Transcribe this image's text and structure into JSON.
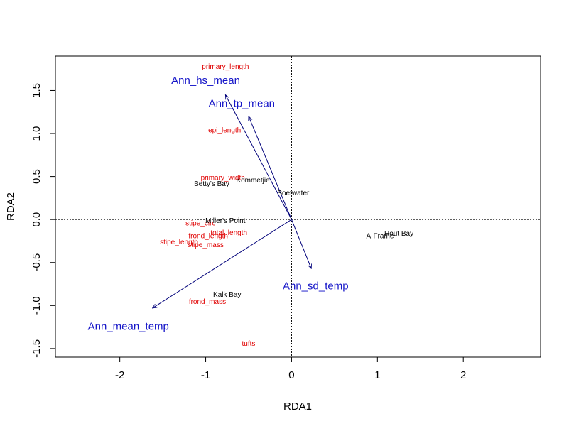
{
  "chart_data": {
    "type": "scatter",
    "title": "",
    "xlabel": "RDA1",
    "ylabel": "RDA2",
    "xlim": [
      -2.75,
      2.9
    ],
    "ylim": [
      -1.6,
      1.9
    ],
    "xticks": [
      -2,
      -1,
      0,
      1,
      2
    ],
    "yticks": [
      -1.5,
      -1.0,
      -0.5,
      0.0,
      0.5,
      1.0,
      1.5
    ],
    "ytick_labels": [
      "-1.5",
      "-1.0",
      "-0.5",
      "0.0",
      "0.5",
      "1.0",
      "1.5"
    ],
    "grid": false,
    "reference_lines": {
      "x0": true,
      "y0": true,
      "style": "dotted"
    },
    "colors": {
      "sites": "#000000",
      "species": "#e00000",
      "env_text": "#1515c8",
      "env_arrows": "#00007a"
    },
    "sites": [
      {
        "label": "Betty's Bay",
        "x": -0.93,
        "y": 0.42
      },
      {
        "label": "Kommetjie",
        "x": -0.45,
        "y": 0.46
      },
      {
        "label": "Soetwater",
        "x": 0.02,
        "y": 0.31
      },
      {
        "label": "Miller's Point",
        "x": -0.77,
        "y": -0.01
      },
      {
        "label": "Hout Bay",
        "x": 1.25,
        "y": -0.16
      },
      {
        "label": "A-Frame",
        "x": 1.03,
        "y": -0.19
      },
      {
        "label": "Kalk Bay",
        "x": -0.75,
        "y": -0.87
      }
    ],
    "species": [
      {
        "label": "primary_length",
        "x": -0.77,
        "y": 1.78
      },
      {
        "label": "epi_length",
        "x": -0.78,
        "y": 1.04
      },
      {
        "label": "primary_width",
        "x": -0.8,
        "y": 0.49
      },
      {
        "label": "stipe_circ",
        "x": -1.06,
        "y": -0.04
      },
      {
        "label": "total_length",
        "x": -0.73,
        "y": -0.15
      },
      {
        "label": "frond_length",
        "x": -0.97,
        "y": -0.19
      },
      {
        "label": "stipe_length",
        "x": -1.31,
        "y": -0.26
      },
      {
        "label": "stipe_mass",
        "x": -1.0,
        "y": -0.29
      },
      {
        "label": "frond_mass",
        "x": -0.98,
        "y": -0.95
      },
      {
        "label": "tufts",
        "x": -0.5,
        "y": -1.44
      }
    ],
    "env_vectors": [
      {
        "label": "Ann_hs_mean",
        "x": -0.77,
        "y": 1.45,
        "label_x": -1.0,
        "label_y": 1.62
      },
      {
        "label": "Ann_tp_mean",
        "x": -0.5,
        "y": 1.2,
        "label_x": -0.58,
        "label_y": 1.35
      },
      {
        "label": "Ann_sd_temp",
        "x": 0.23,
        "y": -0.57,
        "label_x": 0.28,
        "label_y": -0.77
      },
      {
        "label": "Ann_mean_temp",
        "x": -1.62,
        "y": -1.03,
        "label_x": -1.9,
        "label_y": -1.24
      }
    ]
  }
}
